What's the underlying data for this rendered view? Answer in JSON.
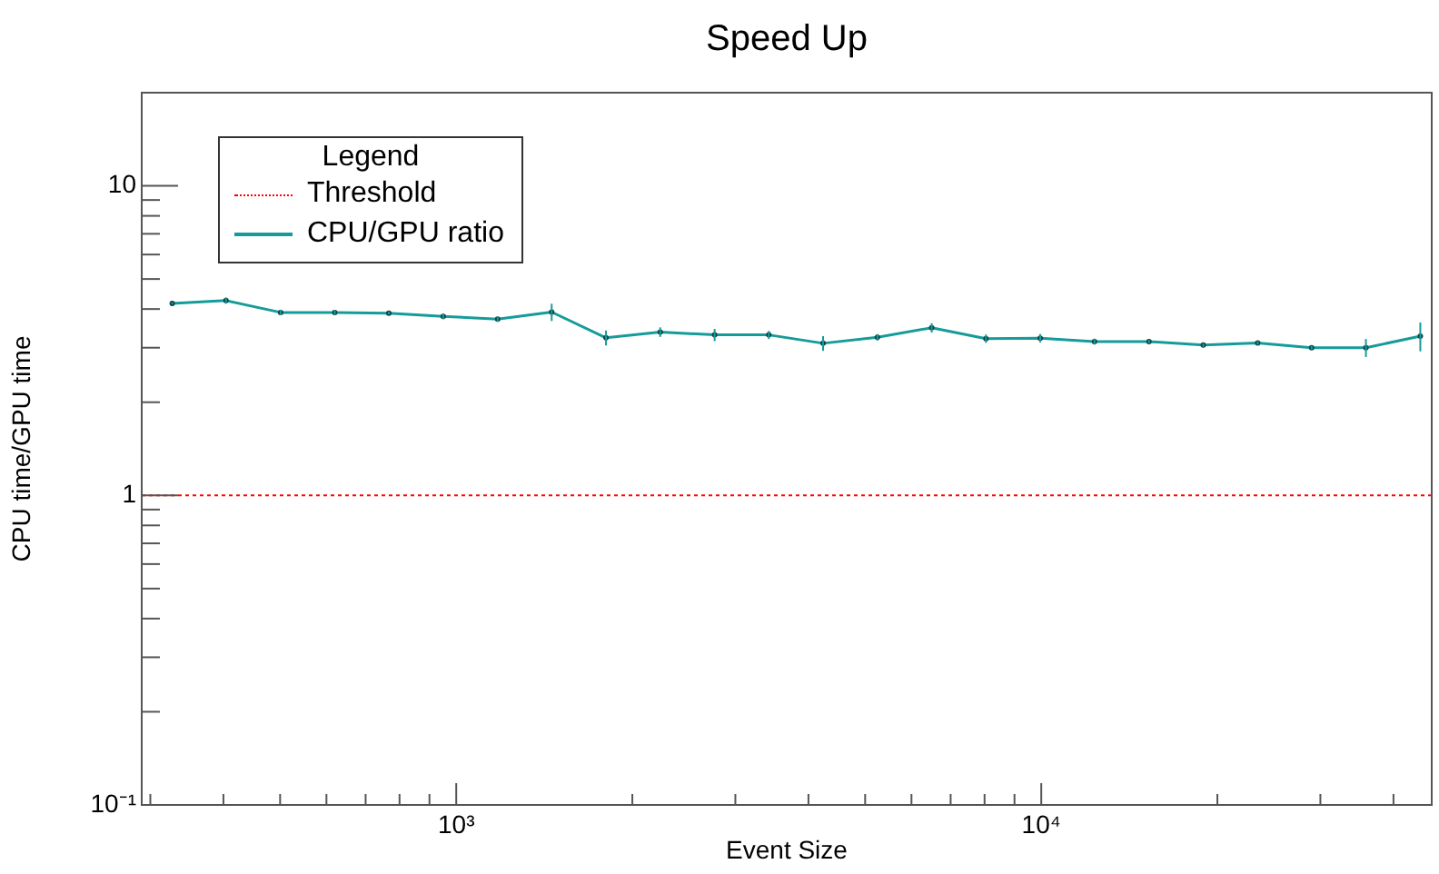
{
  "chart_data": {
    "type": "line",
    "title": "Speed Up",
    "xlabel": "Event Size",
    "ylabel": "CPU time/GPU time",
    "legend_title": "Legend",
    "log": "xy",
    "grid": false,
    "legend": "top left",
    "marker": "circle",
    "line_style": "solid",
    "x": [
      327,
      404,
      501,
      620,
      767,
      950,
      1177,
      1456,
      1803,
      2232,
      2765,
      3422,
      4237,
      5246,
      6497,
      8044,
      9960,
      12330,
      15280,
      18920,
      23440,
      28980,
      35890,
      44460
    ],
    "series": [
      {
        "name": "CPU/GPU ratio",
        "color": "#169b9b",
        "values": [
          4.17,
          4.26,
          3.9,
          3.9,
          3.88,
          3.79,
          3.71,
          3.91,
          3.23,
          3.37,
          3.3,
          3.3,
          3.1,
          3.24,
          3.48,
          3.21,
          3.22,
          3.14,
          3.14,
          3.06,
          3.11,
          3.0,
          3.0,
          3.27
        ],
        "errors": [
          0.03,
          0.1,
          0.08,
          0.07,
          0.04,
          0.08,
          0.07,
          0.25,
          0.18,
          0.12,
          0.15,
          0.1,
          0.17,
          0.08,
          0.12,
          0.1,
          0.1,
          0.07,
          0.04,
          0.04,
          0.04,
          0.04,
          0.2,
          0.35
        ]
      }
    ],
    "ref_lines": [
      {
        "axis": "y",
        "value": 1,
        "label": "Threshold",
        "color": "#ff0000",
        "line_style": "dotted"
      }
    ],
    "xlim": [
      290,
      46500
    ],
    "ylim": [
      0.1,
      20
    ],
    "xticks": [
      {
        "value": 300,
        "label": null
      },
      {
        "value": 400,
        "label": null
      },
      {
        "value": 500,
        "label": null
      },
      {
        "value": 600,
        "label": null
      },
      {
        "value": 700,
        "label": null
      },
      {
        "value": 800,
        "label": null
      },
      {
        "value": 900,
        "label": null
      },
      {
        "value": 1000,
        "label": "10³"
      },
      {
        "value": 2000,
        "label": null
      },
      {
        "value": 3000,
        "label": null
      },
      {
        "value": 4000,
        "label": null
      },
      {
        "value": 5000,
        "label": null
      },
      {
        "value": 6000,
        "label": null
      },
      {
        "value": 7000,
        "label": null
      },
      {
        "value": 8000,
        "label": null
      },
      {
        "value": 9000,
        "label": null
      },
      {
        "value": 10000,
        "label": "10⁴"
      },
      {
        "value": 20000,
        "label": null
      },
      {
        "value": 30000,
        "label": null
      },
      {
        "value": 40000,
        "label": null
      }
    ],
    "yticks": [
      {
        "value": 0.1,
        "label": "10⁻¹"
      },
      {
        "value": 0.2,
        "label": null
      },
      {
        "value": 0.3,
        "label": null
      },
      {
        "value": 0.4,
        "label": null
      },
      {
        "value": 0.5,
        "label": null
      },
      {
        "value": 0.6,
        "label": null
      },
      {
        "value": 0.7,
        "label": null
      },
      {
        "value": 0.8,
        "label": null
      },
      {
        "value": 0.9,
        "label": null
      },
      {
        "value": 1,
        "label": "1"
      },
      {
        "value": 2,
        "label": null
      },
      {
        "value": 3,
        "label": null
      },
      {
        "value": 4,
        "label": null
      },
      {
        "value": 5,
        "label": null
      },
      {
        "value": 6,
        "label": null
      },
      {
        "value": 7,
        "label": null
      },
      {
        "value": 8,
        "label": null
      },
      {
        "value": 9,
        "label": null
      },
      {
        "value": 10,
        "label": "10"
      }
    ]
  }
}
